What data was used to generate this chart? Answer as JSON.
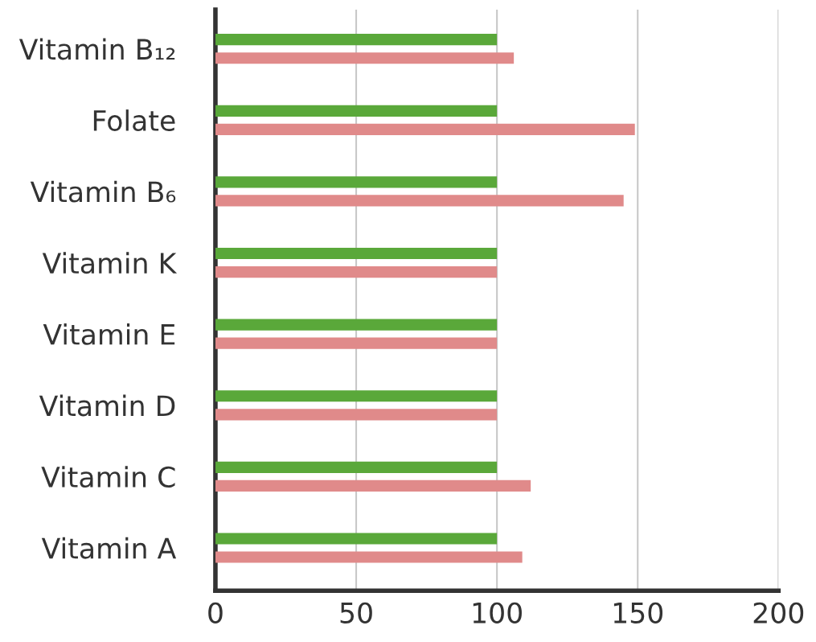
{
  "chart_data": {
    "type": "bar",
    "orientation": "horizontal",
    "categories": [
      "Vitamin B₁₂",
      "Folate",
      "Vitamin B₆",
      "Vitamin K",
      "Vitamin E",
      "Vitamin D",
      "Vitamin C",
      "Vitamin A"
    ],
    "series": [
      {
        "color": "#5aa83a",
        "values": [
          100,
          100,
          100,
          100,
          100,
          100,
          100,
          100
        ]
      },
      {
        "color": "#e08a8a",
        "values": [
          106,
          149,
          145,
          100,
          100,
          100,
          112,
          109
        ]
      }
    ],
    "xlim": [
      0,
      200
    ],
    "xticks": [
      0,
      50,
      100,
      150,
      200
    ],
    "grid": "x",
    "legend": false
  }
}
